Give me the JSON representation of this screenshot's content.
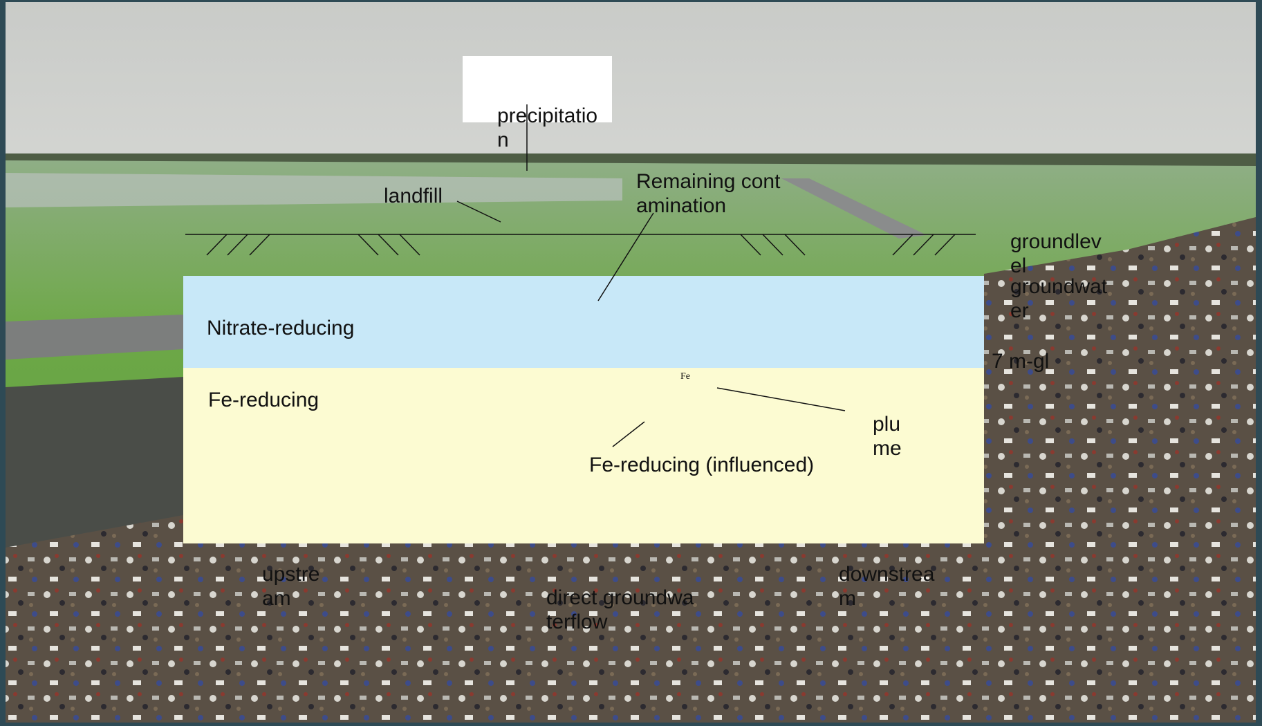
{
  "diagram": {
    "labels": {
      "precipitation": "precipitation",
      "landfill": "landfill",
      "remaining_contamination": "Remaining contamination",
      "groundlevel": "groundlevel",
      "groundwater": "groundwater",
      "depth": "7 m-gl",
      "fe_plume": "Fe",
      "plume": "plume",
      "fe_influenced": "Fe-reducing (influenced)",
      "upstream": "upstream",
      "direct_flow": "direct groundwaterflow",
      "downstream": "downstream"
    },
    "zones": [
      "Nitrate-reducing",
      "Fe-reducing"
    ]
  }
}
